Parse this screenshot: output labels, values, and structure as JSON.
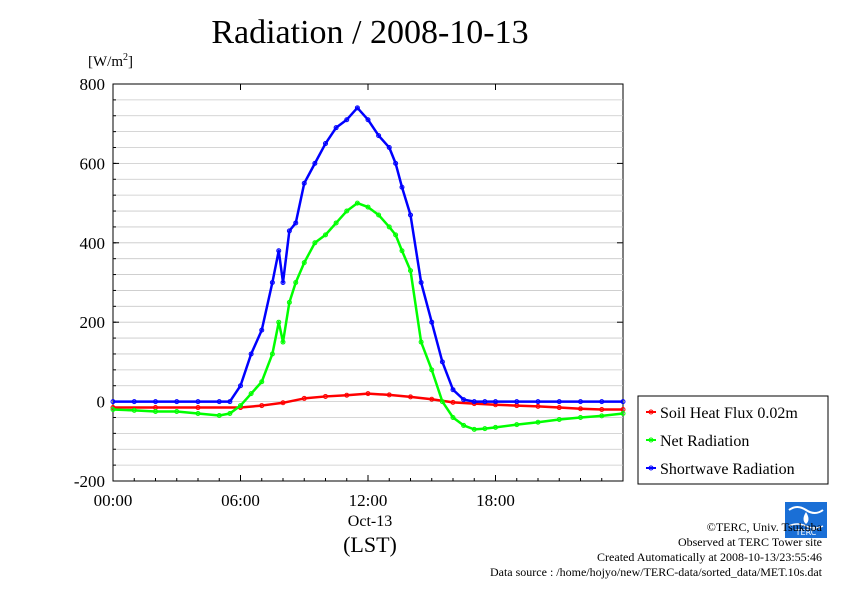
{
  "title": "Radiation / 2008-10-13",
  "unit": {
    "prefix": "[W/m",
    "sup": "2",
    "suffix": "]"
  },
  "date_label": "Oct-13",
  "lst_label": "(LST)",
  "credits": {
    "copyright": "©TERC, Univ. Tsukuba",
    "observed": "Observed at TERC Tower site",
    "created": "Created Automatically at 2008-10-13/23:55:46",
    "source": "Data source : /home/hojyo/new/TERC-data/sorted_data/MET.10s.dat"
  },
  "logo_text": "TERC",
  "chart_data": {
    "type": "line",
    "title": "Radiation / 2008-10-13",
    "ylabel": "[W/m2]",
    "xlabel": "(LST)",
    "ylim": [
      -200,
      800
    ],
    "xlim": [
      0,
      24
    ],
    "yticks": [
      -200,
      0,
      200,
      400,
      600,
      800
    ],
    "xticks": [
      0,
      6,
      12,
      18
    ],
    "xtick_labels": [
      "00:00",
      "06:00",
      "12:00",
      "18:00"
    ],
    "grid": true,
    "legend_position": "right",
    "series": [
      {
        "name": "Soil Heat Flux 0.02m",
        "color": "#ff0000",
        "x": [
          0,
          2,
          4,
          6,
          7,
          8,
          9,
          10,
          11,
          12,
          13,
          14,
          15,
          16,
          17,
          18,
          19,
          20,
          21,
          22,
          23,
          24
        ],
        "y": [
          -15,
          -15,
          -15,
          -15,
          -10,
          -3,
          8,
          13,
          16,
          20,
          17,
          12,
          6,
          -2,
          -5,
          -8,
          -10,
          -12,
          -15,
          -18,
          -20,
          -20
        ]
      },
      {
        "name": "Net Radiation",
        "color": "#00ff00",
        "x": [
          0,
          1,
          2,
          3,
          4,
          5,
          5.5,
          6,
          6.5,
          7,
          7.5,
          7.8,
          8,
          8.3,
          8.6,
          9,
          9.5,
          10,
          10.5,
          11,
          11.5,
          12,
          12.5,
          13,
          13.3,
          13.6,
          14,
          14.5,
          15,
          15.5,
          16,
          16.5,
          17,
          17.5,
          18,
          19,
          20,
          21,
          22,
          23,
          24
        ],
        "y": [
          -20,
          -22,
          -25,
          -25,
          -30,
          -35,
          -30,
          -10,
          20,
          50,
          120,
          200,
          150,
          250,
          300,
          350,
          400,
          420,
          450,
          480,
          500,
          490,
          470,
          440,
          420,
          380,
          330,
          150,
          80,
          0,
          -40,
          -60,
          -70,
          -68,
          -65,
          -58,
          -52,
          -45,
          -40,
          -36,
          -30
        ]
      },
      {
        "name": "Shortwave Radiation",
        "color": "#0000ff",
        "x": [
          0,
          1,
          2,
          3,
          4,
          5,
          5.5,
          6,
          6.5,
          7,
          7.5,
          7.8,
          8,
          8.3,
          8.6,
          9,
          9.5,
          10,
          10.5,
          11,
          11.5,
          12,
          12.5,
          13,
          13.3,
          13.6,
          14,
          14.5,
          15,
          15.5,
          16,
          16.5,
          17,
          17.5,
          18,
          19,
          20,
          21,
          22,
          23,
          24
        ],
        "y": [
          0,
          0,
          0,
          0,
          0,
          0,
          0,
          40,
          120,
          180,
          300,
          380,
          300,
          430,
          450,
          550,
          600,
          650,
          690,
          710,
          740,
          710,
          670,
          640,
          600,
          540,
          470,
          300,
          200,
          100,
          30,
          5,
          0,
          0,
          0,
          0,
          0,
          0,
          0,
          0,
          0
        ]
      }
    ]
  }
}
